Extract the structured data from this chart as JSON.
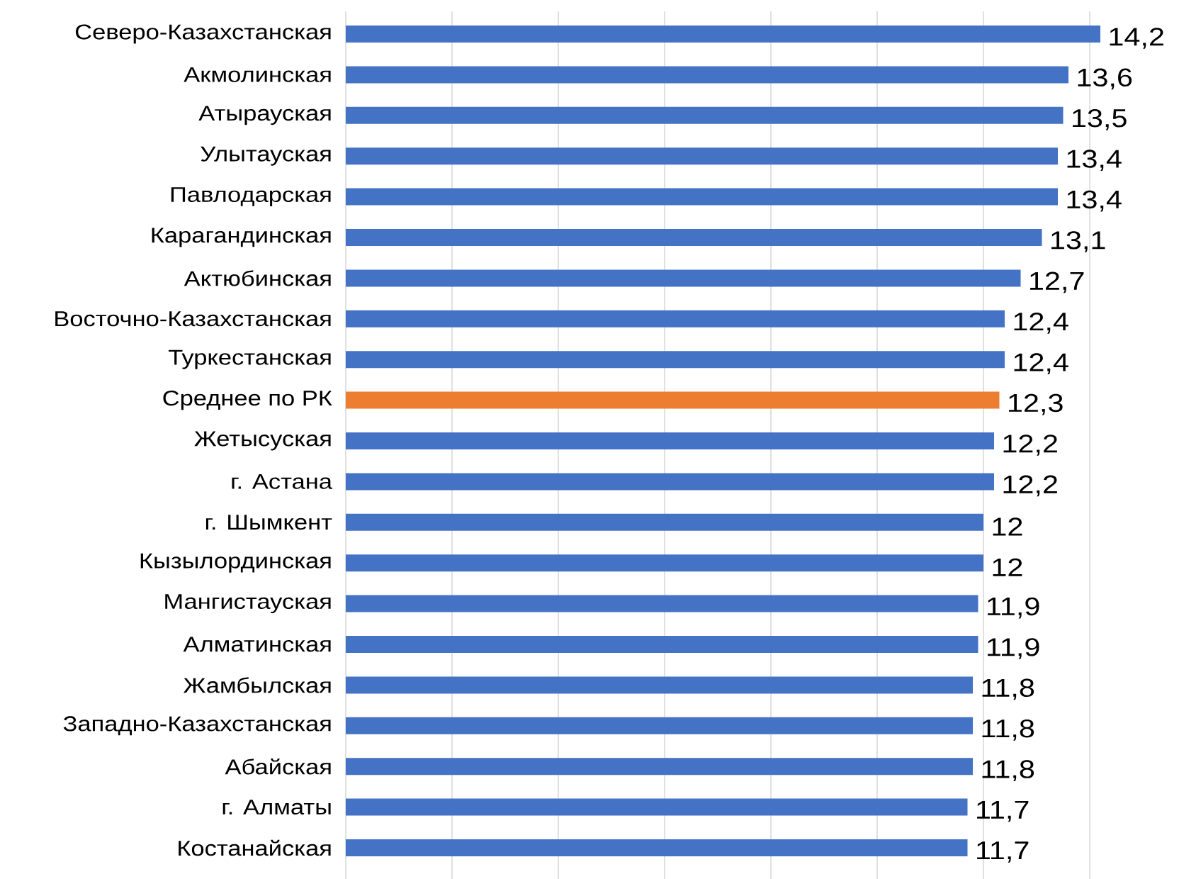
{
  "chart_data": {
    "type": "bar",
    "orientation": "horizontal",
    "categories": [
      "Северо-Казахстанская",
      "Акмолинская",
      "Атырауская",
      "Улытауская",
      "Павлодарская",
      "Карагандинская",
      "Актюбинская",
      "Восточно-Казахстанская",
      "Туркестанская",
      "Среднее по РК",
      "Жетысуская",
      "г. Астана",
      "г. Шымкент",
      "Кызылординская",
      "Мангистауская",
      "Алматинская",
      "Жамбылская",
      "Западно-Казахстанская",
      "Абайская",
      "г. Алматы",
      "Костанайская"
    ],
    "values": [
      14.2,
      13.6,
      13.5,
      13.4,
      13.4,
      13.1,
      12.7,
      12.4,
      12.4,
      12.3,
      12.2,
      12.2,
      12,
      12,
      11.9,
      11.9,
      11.8,
      11.8,
      11.8,
      11.7,
      11.7
    ],
    "colors": [
      "#4472c4",
      "#4472c4",
      "#4472c4",
      "#4472c4",
      "#4472c4",
      "#4472c4",
      "#4472c4",
      "#4472c4",
      "#4472c4",
      "#ed7d31",
      "#4472c4",
      "#4472c4",
      "#4472c4",
      "#4472c4",
      "#4472c4",
      "#4472c4",
      "#4472c4",
      "#4472c4",
      "#4472c4",
      "#4472c4",
      "#4472c4"
    ],
    "value_labels": [
      "14,2",
      "13,6",
      "13,5",
      "13,4",
      "13,4",
      "13,1",
      "12,7",
      "12,4",
      "12,4",
      "12,3",
      "12,2",
      "12,2",
      "12",
      "12",
      "11,9",
      "11,9",
      "11,8",
      "11,8",
      "11,8",
      "11,7",
      "11,7"
    ],
    "xticks": [
      {
        "value": 0,
        "label": null
      },
      {
        "value": 2,
        "label": null
      },
      {
        "value": 4,
        "label": null
      },
      {
        "value": 6,
        "label": null
      },
      {
        "value": 8,
        "label": null
      },
      {
        "value": 10,
        "label": null
      },
      {
        "value": 12,
        "label": null
      },
      {
        "value": 14,
        "label": null
      }
    ],
    "grid": "x",
    "tick_labels": "y"
  }
}
